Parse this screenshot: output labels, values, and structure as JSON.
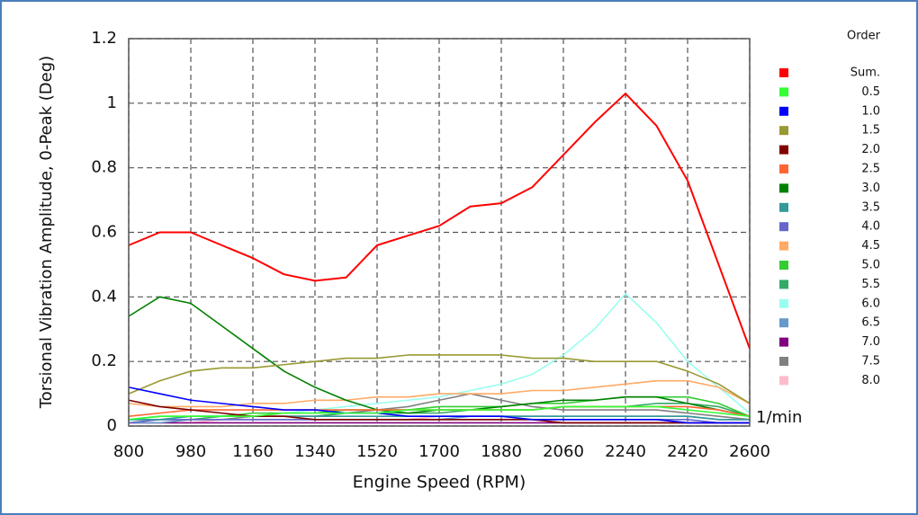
{
  "chart_data": {
    "type": "line",
    "xlabel": "Engine Speed  (RPM)",
    "ylabel": "Torsional Vibration Amplitude, 0-Peak (Deg)",
    "legend_title": "Order",
    "annotation": "1/min",
    "grid": true,
    "xlim": [
      800,
      2600
    ],
    "ylim": [
      0,
      1.2
    ],
    "xticks": [
      800,
      980,
      1160,
      1340,
      1520,
      1700,
      1880,
      2060,
      2240,
      2420,
      2600
    ],
    "yticks": [
      0,
      0.2,
      0.4,
      0.6,
      0.8,
      1,
      1.2
    ],
    "x": [
      800,
      890,
      980,
      1070,
      1160,
      1250,
      1340,
      1430,
      1520,
      1610,
      1700,
      1790,
      1880,
      1970,
      2060,
      2150,
      2240,
      2330,
      2420,
      2510,
      2600
    ],
    "series": [
      {
        "name": "Sum.",
        "color": "#ff0000",
        "values": [
          0.56,
          0.6,
          0.6,
          0.56,
          0.52,
          0.47,
          0.45,
          0.46,
          0.56,
          0.59,
          0.62,
          0.68,
          0.69,
          0.74,
          0.84,
          0.94,
          1.03,
          0.93,
          0.76,
          0.5,
          0.24
        ]
      },
      {
        "name": "0.5",
        "color": "#33ff33",
        "values": [
          0.02,
          0.03,
          0.03,
          0.03,
          0.03,
          0.04,
          0.04,
          0.04,
          0.04,
          0.05,
          0.05,
          0.05,
          0.05,
          0.05,
          0.06,
          0.06,
          0.06,
          0.06,
          0.05,
          0.04,
          0.03
        ]
      },
      {
        "name": "1.0",
        "color": "#0000ff",
        "values": [
          0.12,
          0.1,
          0.08,
          0.07,
          0.06,
          0.05,
          0.05,
          0.04,
          0.04,
          0.03,
          0.03,
          0.03,
          0.03,
          0.02,
          0.02,
          0.02,
          0.02,
          0.02,
          0.01,
          0.01,
          0.01
        ]
      },
      {
        "name": "1.5",
        "color": "#999933",
        "values": [
          0.1,
          0.14,
          0.17,
          0.18,
          0.18,
          0.19,
          0.2,
          0.21,
          0.21,
          0.22,
          0.22,
          0.22,
          0.22,
          0.21,
          0.21,
          0.2,
          0.2,
          0.2,
          0.17,
          0.13,
          0.07
        ]
      },
      {
        "name": "2.0",
        "color": "#800000",
        "values": [
          0.08,
          0.06,
          0.05,
          0.04,
          0.03,
          0.03,
          0.02,
          0.02,
          0.02,
          0.02,
          0.02,
          0.02,
          0.02,
          0.02,
          0.01,
          0.01,
          0.01,
          0.01,
          0.01,
          0.01,
          0.01
        ]
      },
      {
        "name": "2.5",
        "color": "#ff6633",
        "values": [
          0.03,
          0.04,
          0.05,
          0.05,
          0.05,
          0.05,
          0.05,
          0.05,
          0.05,
          0.05,
          0.05,
          0.05,
          0.05,
          0.05,
          0.06,
          0.06,
          0.06,
          0.06,
          0.06,
          0.05,
          0.03
        ]
      },
      {
        "name": "3.0",
        "color": "#008000",
        "values": [
          0.34,
          0.4,
          0.38,
          0.31,
          0.24,
          0.17,
          0.12,
          0.08,
          0.05,
          0.04,
          0.05,
          0.05,
          0.06,
          0.07,
          0.08,
          0.08,
          0.09,
          0.09,
          0.07,
          0.05,
          0.03
        ]
      },
      {
        "name": "3.5",
        "color": "#339999",
        "values": [
          0.02,
          0.02,
          0.03,
          0.03,
          0.03,
          0.03,
          0.03,
          0.03,
          0.03,
          0.03,
          0.03,
          0.03,
          0.03,
          0.03,
          0.03,
          0.03,
          0.03,
          0.03,
          0.03,
          0.02,
          0.02
        ]
      },
      {
        "name": "4.0",
        "color": "#6666cc",
        "values": [
          0.01,
          0.02,
          0.02,
          0.02,
          0.02,
          0.02,
          0.02,
          0.02,
          0.02,
          0.02,
          0.02,
          0.02,
          0.02,
          0.02,
          0.02,
          0.02,
          0.02,
          0.02,
          0.02,
          0.01,
          0.01
        ]
      },
      {
        "name": "4.5",
        "color": "#ffaa66",
        "values": [
          0.07,
          0.06,
          0.06,
          0.06,
          0.07,
          0.07,
          0.08,
          0.08,
          0.09,
          0.09,
          0.1,
          0.1,
          0.1,
          0.11,
          0.11,
          0.12,
          0.13,
          0.14,
          0.14,
          0.12,
          0.07
        ]
      },
      {
        "name": "5.0",
        "color": "#33cc33",
        "values": [
          0.02,
          0.03,
          0.03,
          0.03,
          0.04,
          0.04,
          0.04,
          0.05,
          0.05,
          0.05,
          0.06,
          0.06,
          0.06,
          0.07,
          0.07,
          0.08,
          0.09,
          0.09,
          0.09,
          0.07,
          0.03
        ]
      },
      {
        "name": "5.5",
        "color": "#33aa66",
        "values": [
          0.02,
          0.02,
          0.02,
          0.03,
          0.03,
          0.03,
          0.03,
          0.04,
          0.04,
          0.04,
          0.04,
          0.05,
          0.05,
          0.05,
          0.06,
          0.06,
          0.06,
          0.07,
          0.07,
          0.06,
          0.03
        ]
      },
      {
        "name": "6.0",
        "color": "#99ffee",
        "values": [
          0.02,
          0.02,
          0.03,
          0.03,
          0.04,
          0.04,
          0.05,
          0.06,
          0.07,
          0.08,
          0.09,
          0.11,
          0.13,
          0.16,
          0.22,
          0.3,
          0.41,
          0.32,
          0.2,
          0.12,
          0.04
        ]
      },
      {
        "name": "6.5",
        "color": "#6699cc",
        "values": [
          0.01,
          0.01,
          0.02,
          0.02,
          0.02,
          0.02,
          0.02,
          0.02,
          0.02,
          0.02,
          0.02,
          0.03,
          0.03,
          0.03,
          0.03,
          0.03,
          0.03,
          0.03,
          0.03,
          0.02,
          0.02
        ]
      },
      {
        "name": "7.0",
        "color": "#800080",
        "values": [
          0.01,
          0.01,
          0.01,
          0.01,
          0.01,
          0.01,
          0.01,
          0.01,
          0.01,
          0.01,
          0.01,
          0.01,
          0.01,
          0.01,
          0.01,
          0.01,
          0.01,
          0.01,
          0.01,
          0.01,
          0.01
        ]
      },
      {
        "name": "7.5",
        "color": "#808080",
        "values": [
          0.02,
          0.02,
          0.02,
          0.02,
          0.03,
          0.03,
          0.03,
          0.04,
          0.05,
          0.06,
          0.08,
          0.1,
          0.08,
          0.06,
          0.05,
          0.05,
          0.05,
          0.05,
          0.04,
          0.03,
          0.02
        ]
      },
      {
        "name": "8.0",
        "color": "#ffbbcc",
        "values": [
          0.01,
          0.01,
          0.01,
          0.02,
          0.02,
          0.02,
          0.02,
          0.02,
          0.02,
          0.02,
          0.03,
          0.03,
          0.03,
          0.03,
          0.03,
          0.03,
          0.03,
          0.03,
          0.03,
          0.02,
          0.02
        ]
      }
    ]
  }
}
